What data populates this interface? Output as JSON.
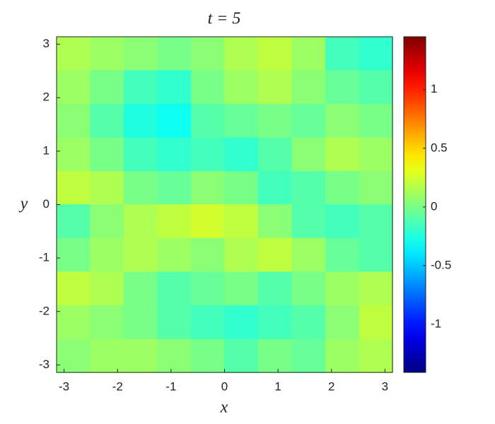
{
  "chart_data": {
    "type": "heatmap",
    "title": "t = 5",
    "x_label": "x",
    "y_label": "y",
    "x": [
      -2.83,
      -2.2,
      -1.57,
      -0.94,
      -0.31,
      0.31,
      0.94,
      1.57,
      2.2,
      2.83
    ],
    "y": [
      2.83,
      2.2,
      1.57,
      0.94,
      0.31,
      -0.31,
      -0.94,
      -1.57,
      -2.2,
      -2.83
    ],
    "z": [
      [
        0.15,
        0.1,
        0.05,
        0.0,
        0.05,
        0.15,
        0.2,
        0.1,
        -0.15,
        -0.2
      ],
      [
        0.1,
        0.0,
        -0.15,
        -0.2,
        0.0,
        0.1,
        0.15,
        0.05,
        -0.05,
        -0.1
      ],
      [
        0.05,
        -0.1,
        -0.25,
        -0.3,
        -0.1,
        -0.05,
        0.0,
        -0.05,
        0.05,
        0.0
      ],
      [
        0.1,
        0.0,
        -0.15,
        -0.2,
        -0.15,
        -0.2,
        -0.1,
        0.05,
        0.15,
        0.1
      ],
      [
        0.2,
        0.15,
        0.0,
        -0.05,
        0.05,
        0.0,
        -0.15,
        -0.1,
        0.0,
        0.05
      ],
      [
        -0.1,
        0.05,
        0.15,
        0.2,
        0.25,
        0.2,
        0.05,
        -0.1,
        -0.15,
        -0.1
      ],
      [
        0.0,
        0.1,
        0.15,
        0.1,
        0.05,
        0.15,
        0.2,
        0.1,
        -0.05,
        -0.1
      ],
      [
        0.2,
        0.15,
        0.0,
        -0.1,
        -0.05,
        0.0,
        -0.1,
        0.0,
        0.1,
        0.15
      ],
      [
        0.1,
        0.05,
        0.0,
        -0.1,
        -0.15,
        -0.2,
        -0.15,
        -0.1,
        0.05,
        0.2
      ],
      [
        0.05,
        0.1,
        0.1,
        0.05,
        0.0,
        -0.1,
        0.0,
        -0.05,
        0.1,
        0.15
      ]
    ],
    "xlim": [
      -3.14,
      3.14
    ],
    "ylim": [
      -3.14,
      3.14
    ],
    "xticks": [
      -3,
      -2,
      -1,
      0,
      1,
      2,
      3
    ],
    "yticks": [
      -3,
      -2,
      -1,
      0,
      1,
      2,
      3
    ],
    "colormap": "jet",
    "clim": [
      -1.41,
      1.45
    ],
    "cticks": [
      -1,
      -0.5,
      0,
      0.5,
      1
    ]
  }
}
